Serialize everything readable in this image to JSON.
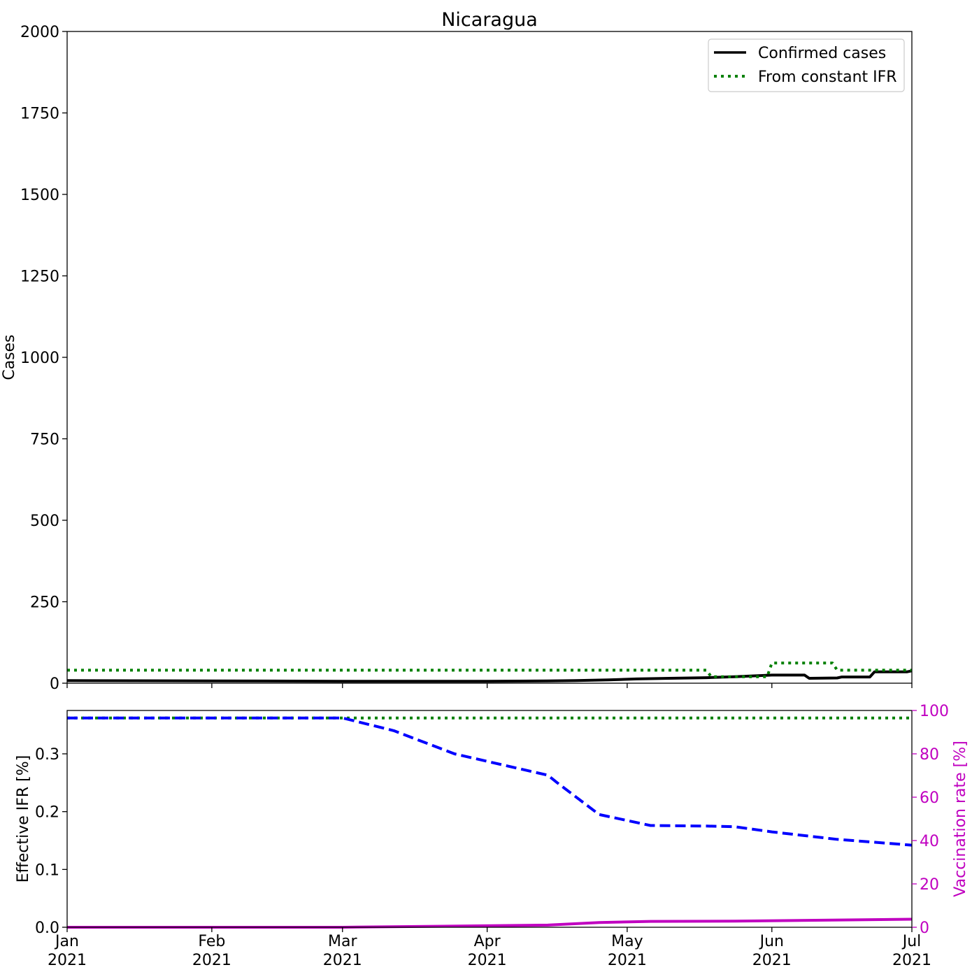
{
  "title": "Nicaragua",
  "x_ticks": [
    {
      "label1": "Jan",
      "label2": "2021",
      "date": "2021-01-01"
    },
    {
      "label1": "Feb",
      "label2": "2021",
      "date": "2021-02-01"
    },
    {
      "label1": "Mar",
      "label2": "2021",
      "date": "2021-03-01"
    },
    {
      "label1": "Apr",
      "label2": "2021",
      "date": "2021-04-01"
    },
    {
      "label1": "May",
      "label2": "2021",
      "date": "2021-05-01"
    },
    {
      "label1": "Jun",
      "label2": "2021",
      "date": "2021-06-01"
    },
    {
      "label1": "Jul",
      "label2": "2021",
      "date": "2021-07-01"
    }
  ],
  "chart_data": [
    {
      "type": "line",
      "title": "Nicaragua",
      "xlabel": "",
      "ylabel": "Cases",
      "xlim": [
        "2021-01-01",
        "2021-07-01"
      ],
      "ylim": [
        0,
        2000
      ],
      "yticks": [
        0,
        250,
        500,
        750,
        1000,
        1250,
        1500,
        1750,
        2000
      ],
      "legend_position": "top-right",
      "grid": false,
      "series": [
        {
          "name": "Confirmed cases",
          "color": "#000000",
          "style": "solid",
          "points": [
            [
              "2021-01-01",
              8
            ],
            [
              "2021-02-01",
              7
            ],
            [
              "2021-03-01",
              6
            ],
            [
              "2021-04-01",
              6
            ],
            [
              "2021-04-14",
              7
            ],
            [
              "2021-04-20",
              8
            ],
            [
              "2021-04-27",
              10
            ],
            [
              "2021-05-03",
              13
            ],
            [
              "2021-05-10",
              15
            ],
            [
              "2021-05-18",
              17
            ],
            [
              "2021-05-24",
              20
            ],
            [
              "2021-06-01",
              25
            ],
            [
              "2021-06-08",
              25
            ],
            [
              "2021-06-09",
              15
            ],
            [
              "2021-06-15",
              16
            ],
            [
              "2021-06-16",
              19
            ],
            [
              "2021-06-22",
              19
            ],
            [
              "2021-06-23",
              35
            ],
            [
              "2021-06-30",
              35
            ],
            [
              "2021-07-01",
              38
            ]
          ]
        },
        {
          "name": "From constant IFR",
          "color": "#008000",
          "style": "dotted",
          "points": [
            [
              "2021-01-01",
              40
            ],
            [
              "2021-05-18",
              40
            ],
            [
              "2021-05-19",
              20
            ],
            [
              "2021-05-31",
              20
            ],
            [
              "2021-06-01",
              62
            ],
            [
              "2021-06-14",
              62
            ],
            [
              "2021-06-15",
              40
            ],
            [
              "2021-07-01",
              40
            ]
          ]
        }
      ]
    },
    {
      "type": "line",
      "xlabel": "",
      "ylabel": "Effective IFR [%]",
      "y2label": "Vaccination rate [%]",
      "xlim": [
        "2021-01-01",
        "2021-07-01"
      ],
      "ylim": [
        0,
        0.375
      ],
      "y2lim": [
        0,
        100
      ],
      "yticks": [
        0.0,
        0.1,
        0.2,
        0.3
      ],
      "ytick_labels": [
        "0.0",
        "0.1",
        "0.2",
        "0.3"
      ],
      "y2ticks": [
        0,
        20,
        40,
        60,
        80,
        100
      ],
      "grid": false,
      "series": [
        {
          "axis": "left",
          "color": "#008000",
          "style": "dotted",
          "points": [
            [
              "2021-01-01",
              0.362
            ],
            [
              "2021-07-01",
              0.362
            ]
          ]
        },
        {
          "axis": "left",
          "color": "#0000ff",
          "style": "dashed",
          "points": [
            [
              "2021-01-01",
              0.362
            ],
            [
              "2021-03-01",
              0.362
            ],
            [
              "2021-03-12",
              0.34
            ],
            [
              "2021-03-25",
              0.3
            ],
            [
              "2021-04-14",
              0.263
            ],
            [
              "2021-04-16",
              0.25
            ],
            [
              "2021-04-25",
              0.195
            ],
            [
              "2021-05-06",
              0.176
            ],
            [
              "2021-05-18",
              0.175
            ],
            [
              "2021-05-24",
              0.174
            ],
            [
              "2021-06-01",
              0.165
            ],
            [
              "2021-06-15",
              0.152
            ],
            [
              "2021-07-01",
              0.142
            ]
          ]
        },
        {
          "axis": "right",
          "color": "#c000c0",
          "style": "solid",
          "points": [
            [
              "2021-01-01",
              0
            ],
            [
              "2021-03-01",
              0
            ],
            [
              "2021-04-14",
              1
            ],
            [
              "2021-04-25",
              2.2
            ],
            [
              "2021-05-06",
              2.7
            ],
            [
              "2021-05-24",
              2.8
            ],
            [
              "2021-07-01",
              3.7
            ]
          ]
        }
      ]
    }
  ],
  "colors": {
    "axis": "#000000",
    "vaccination_axis": "#c000c0"
  }
}
